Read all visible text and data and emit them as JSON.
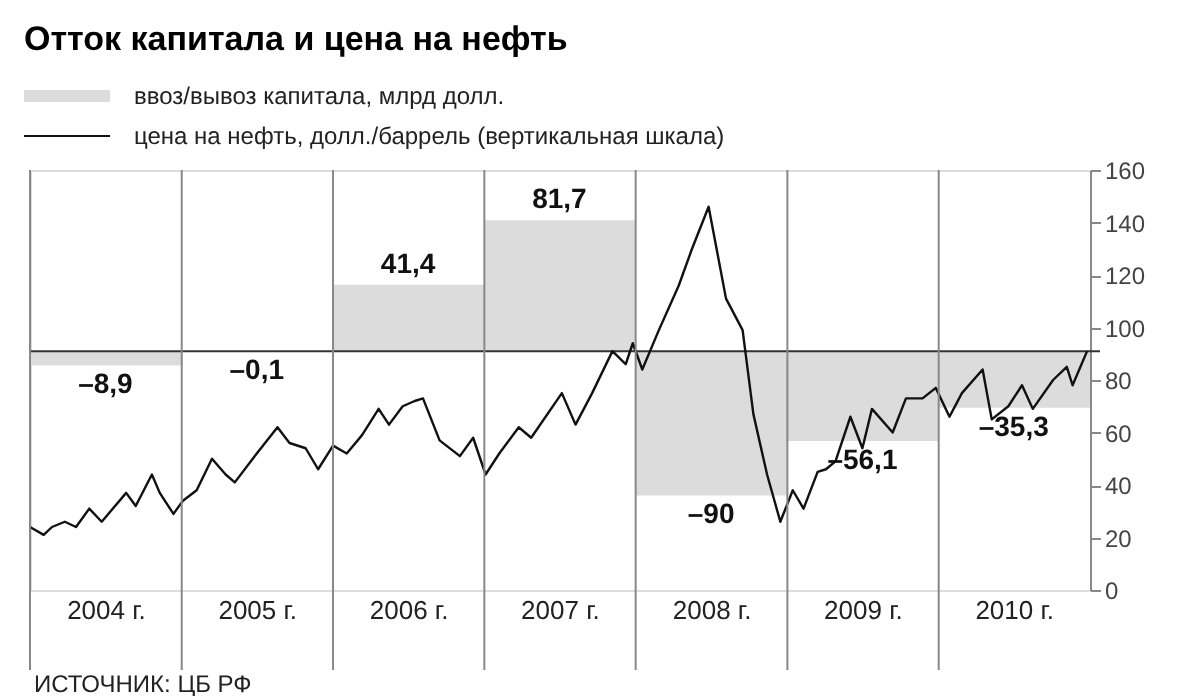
{
  "chart_data": {
    "type": "line",
    "title": "Отток капитала и цена на нефть",
    "legend": "top left",
    "annotations": [
      "ИСТОЧНИК: ЦБ РФ"
    ],
    "xlim": [
      "2004-01-01",
      "2011-01-01"
    ],
    "xticks": [
      {
        "value": "2004-07-01",
        "label": "2004 г."
      },
      {
        "value": "2005-07-01",
        "label": "2005 г."
      },
      {
        "value": "2006-07-01",
        "label": "2006 г."
      },
      {
        "value": "2007-07-01",
        "label": "2007 г."
      },
      {
        "value": "2008-07-01",
        "label": "2008 г."
      },
      {
        "value": "2009-07-01",
        "label": "2009 г."
      },
      {
        "value": "2010-07-01",
        "label": "2010 г."
      }
    ],
    "ylim": [
      0,
      160
    ],
    "yticks": [
      0,
      20,
      40,
      60,
      80,
      100,
      120,
      140,
      160
    ],
    "y2lim": [
      -149,
      113
    ],
    "ref_lines": [
      {
        "axis": "y2",
        "value": 0,
        "color": "#333333"
      },
      {
        "axis": "x",
        "value": "2004",
        "color": "#888888"
      },
      {
        "axis": "x",
        "value": "2005",
        "color": "#888888"
      },
      {
        "axis": "x",
        "value": "2006",
        "color": "#888888"
      },
      {
        "axis": "x",
        "value": "2007",
        "color": "#888888"
      },
      {
        "axis": "x",
        "value": "2008",
        "color": "#888888"
      },
      {
        "axis": "x",
        "value": "2009",
        "color": "#888888"
      },
      {
        "axis": "x",
        "value": "2010",
        "color": "#888888"
      }
    ],
    "series": [
      {
        "name": "ввоз/вывоз капитала, млрд долл.",
        "type": "bar",
        "axis": "y2",
        "color": "#dcdcdc",
        "x": [
          "2004-07-01",
          "2005-07-01",
          "2006-07-01",
          "2007-07-01",
          "2008-07-01",
          "2009-07-01",
          "2010-07-01"
        ],
        "values": [
          -8.9,
          -0.1,
          41.4,
          81.7,
          -90,
          -56.1,
          -35.3
        ],
        "value_labels": [
          "–8,9",
          "–0,1",
          "41,4",
          "81,7",
          "–90",
          "–56,1",
          "–35,3"
        ]
      },
      {
        "name": "цена на нефть, долл./баррель (вертикальная шкала)",
        "color": "#111111",
        "x": [
          "2004-01-01",
          "2004-02-03",
          "2004-02-23",
          "2004-03-25",
          "2004-04-21",
          "2004-05-23",
          "2004-06-22",
          "2004-08-20",
          "2004-09-12",
          "2004-10-21",
          "2004-11-09",
          "2004-12-12",
          "2005-01-04",
          "2005-02-06",
          "2005-03-15",
          "2005-04-17",
          "2005-05-09",
          "2005-07-01",
          "2005-08-20",
          "2005-09-18",
          "2005-10-27",
          "2005-11-26",
          "2006-01-01",
          "2006-02-03",
          "2006-03-12",
          "2006-04-21",
          "2006-05-16",
          "2006-06-18",
          "2006-07-17",
          "2006-08-06",
          "2006-09-15",
          "2006-11-03",
          "2006-12-05",
          "2007-01-04",
          "2007-02-06",
          "2007-03-25",
          "2007-04-24",
          "2007-07-07",
          "2007-08-09",
          "2007-09-18",
          "2007-11-06",
          "2007-12-08",
          "2007-12-25",
          "2008-01-17",
          "2008-02-26",
          "2008-04-14",
          "2008-05-16",
          "2008-06-25",
          "2008-08-06",
          "2008-09-15",
          "2008-10-11",
          "2008-11-13",
          "2008-12-15",
          "2009-01-14",
          "2009-02-09",
          "2009-03-15",
          "2009-04-04",
          "2009-04-27",
          "2009-06-02",
          "2009-07-01",
          "2009-07-24",
          "2009-09-12",
          "2009-10-14",
          "2009-11-23",
          "2009-12-25",
          "2010-01-27",
          "2010-02-26",
          "2010-04-17",
          "2010-05-09",
          "2010-06-18",
          "2010-07-21",
          "2010-08-16",
          "2010-10-04",
          "2010-11-06",
          "2010-11-20",
          "2010-12-25"
        ],
        "values": [
          24,
          21,
          24,
          26,
          24,
          31,
          26,
          37,
          32,
          44,
          37,
          29,
          34,
          38,
          50,
          44,
          41,
          52,
          62,
          56,
          54,
          46,
          55,
          52,
          59,
          69,
          63,
          70,
          72,
          73,
          57,
          51,
          58,
          44,
          52,
          62,
          58,
          75,
          63,
          75,
          91,
          86,
          94,
          84,
          99,
          116,
          130,
          146,
          111,
          99,
          67,
          44,
          26,
          38,
          31,
          45,
          46,
          49,
          66,
          54,
          69,
          60,
          73,
          73,
          77,
          66,
          75,
          84,
          65,
          70,
          78,
          69,
          80,
          85,
          78,
          91
        ]
      }
    ]
  }
}
